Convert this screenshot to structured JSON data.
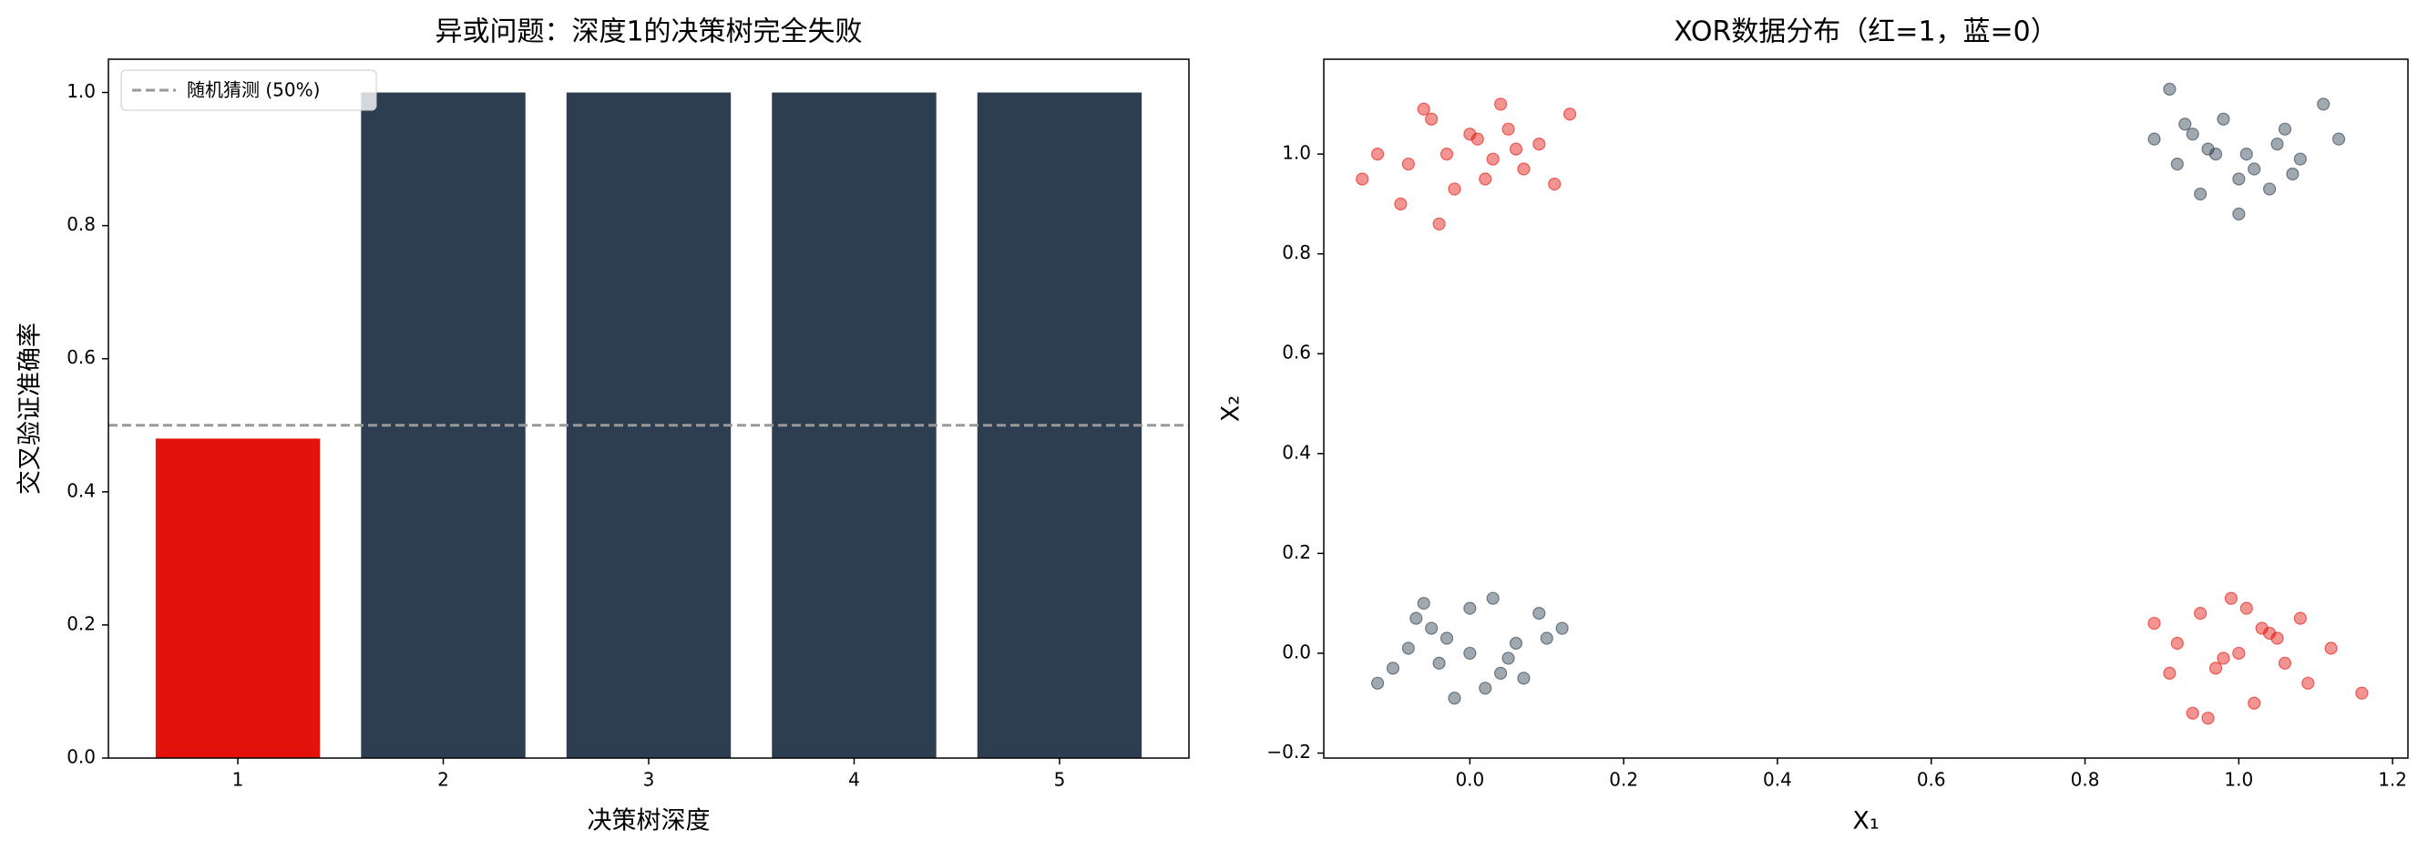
{
  "chart_data": [
    {
      "type": "bar",
      "title": "异或问题：深度1的决策树完全失败",
      "xlabel": "决策树深度",
      "ylabel": "交叉验证准确率",
      "categories": [
        "1",
        "2",
        "3",
        "4",
        "5"
      ],
      "values": [
        0.48,
        1,
        1,
        1,
        1
      ],
      "colors": [
        "#e3120b",
        "#2c3e50",
        "#2c3e50",
        "#2c3e50",
        "#2c3e50"
      ],
      "ylim": [
        0,
        1.05
      ],
      "yticks": [
        {
          "value": 0,
          "label": "0.0"
        },
        0.2,
        0.4,
        0.6,
        0.8,
        {
          "value": 1,
          "label": "1.0"
        }
      ],
      "reference_line": {
        "value": 0.5,
        "label": "随机猜测 (50%)",
        "color": "#999999"
      },
      "legend": "upper left"
    },
    {
      "type": "scatter",
      "title": "XOR数据分布（红=1，蓝=0）",
      "xlabel": "X₁",
      "ylabel": "X₂",
      "series": [
        {
          "color": "#e3120b",
          "x": [
            -0.03,
            0.01,
            -0.08,
            0.05,
            0.02,
            -0.05,
            0.09,
            -0.12,
            0.13,
            -0.02,
            0.04,
            -0.09,
            0.07,
            0.0,
            -0.04,
            0.11,
            -0.14,
            0.03,
            -0.06,
            0.06,
            1.0,
            0.97,
            1.03,
            0.95,
            1.06,
            0.92,
            1.09,
            0.99,
            1.02,
            0.89,
            1.12,
            1.16,
            0.94,
            1.05,
            0.98,
            1.01,
            0.91,
            1.08,
            0.96,
            1.04
          ],
          "y": [
            1.0,
            1.03,
            0.98,
            1.05,
            0.95,
            1.07,
            1.02,
            1.0,
            1.08,
            0.93,
            1.1,
            0.9,
            0.97,
            1.04,
            0.86,
            0.94,
            0.95,
            0.99,
            1.09,
            1.01,
            0.0,
            -0.03,
            0.05,
            0.08,
            -0.02,
            0.02,
            -0.06,
            0.11,
            -0.1,
            0.06,
            0.01,
            -0.08,
            -0.12,
            0.03,
            -0.01,
            0.09,
            -0.04,
            0.07,
            -0.13,
            0.04
          ]
        },
        {
          "color": "#2c3e50",
          "x": [
            0.97,
            1.02,
            0.94,
            1.05,
            1.0,
            0.91,
            1.08,
            0.98,
            1.11,
            0.89,
            1.04,
            0.96,
            1.0,
            1.07,
            0.93,
            1.13,
            1.01,
            0.95,
            0.92,
            1.06,
            0.0,
            -0.03,
            0.04,
            -0.07,
            0.06,
            0.02,
            -0.05,
            0.09,
            -0.1,
            0.12,
            -0.02,
            0.03,
            -0.08,
            0.07,
            0.0,
            -0.04,
            0.1,
            -0.12,
            0.05,
            -0.06
          ],
          "y": [
            1.0,
            0.97,
            1.04,
            1.02,
            0.95,
            1.13,
            0.99,
            1.07,
            1.1,
            1.03,
            0.93,
            1.01,
            0.88,
            0.96,
            1.06,
            1.03,
            1.0,
            0.92,
            0.98,
            1.05,
            0.0,
            0.03,
            -0.04,
            0.07,
            0.02,
            -0.07,
            0.05,
            0.08,
            -0.03,
            0.05,
            -0.09,
            0.11,
            0.01,
            -0.05,
            0.09,
            -0.02,
            0.03,
            -0.06,
            -0.01,
            0.1
          ]
        }
      ],
      "xlim": [
        -0.19,
        1.22
      ],
      "ylim": [
        -0.21,
        1.19
      ],
      "xticks": [
        {
          "value": 0,
          "label": "0.0"
        },
        0.2,
        0.4,
        0.6,
        0.8,
        {
          "value": 1,
          "label": "1.0"
        },
        1.2
      ],
      "yticks": [
        {
          "value": -0.2,
          "label": "−0.2"
        },
        {
          "value": 0,
          "label": "0.0"
        },
        0.2,
        0.4,
        0.6,
        0.8,
        {
          "value": 1,
          "label": "1.0"
        }
      ]
    }
  ]
}
